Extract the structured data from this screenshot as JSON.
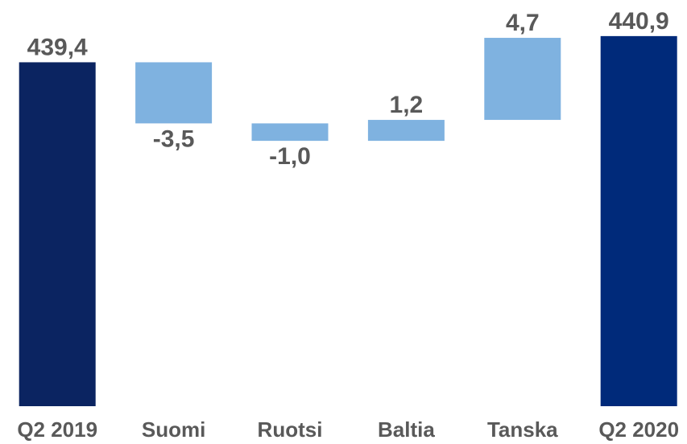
{
  "chart_data": {
    "type": "waterfall",
    "categories": [
      "Q2 2019",
      "Suomi",
      "Ruotsi",
      "Baltia",
      "Tanska",
      "Q2 2020"
    ],
    "values": [
      439.4,
      -3.5,
      -1.0,
      1.2,
      4.7,
      440.9
    ],
    "value_labels": [
      "439,4",
      "-3,5",
      "-1,0",
      "1,2",
      "4,7",
      "440,9"
    ],
    "colors": [
      "#0b2461",
      "#7fb2e0",
      "#7fb2e0",
      "#7fb2e0",
      "#7fb2e0",
      "#002a7a"
    ],
    "ylim": [
      419.7,
      442
    ]
  }
}
